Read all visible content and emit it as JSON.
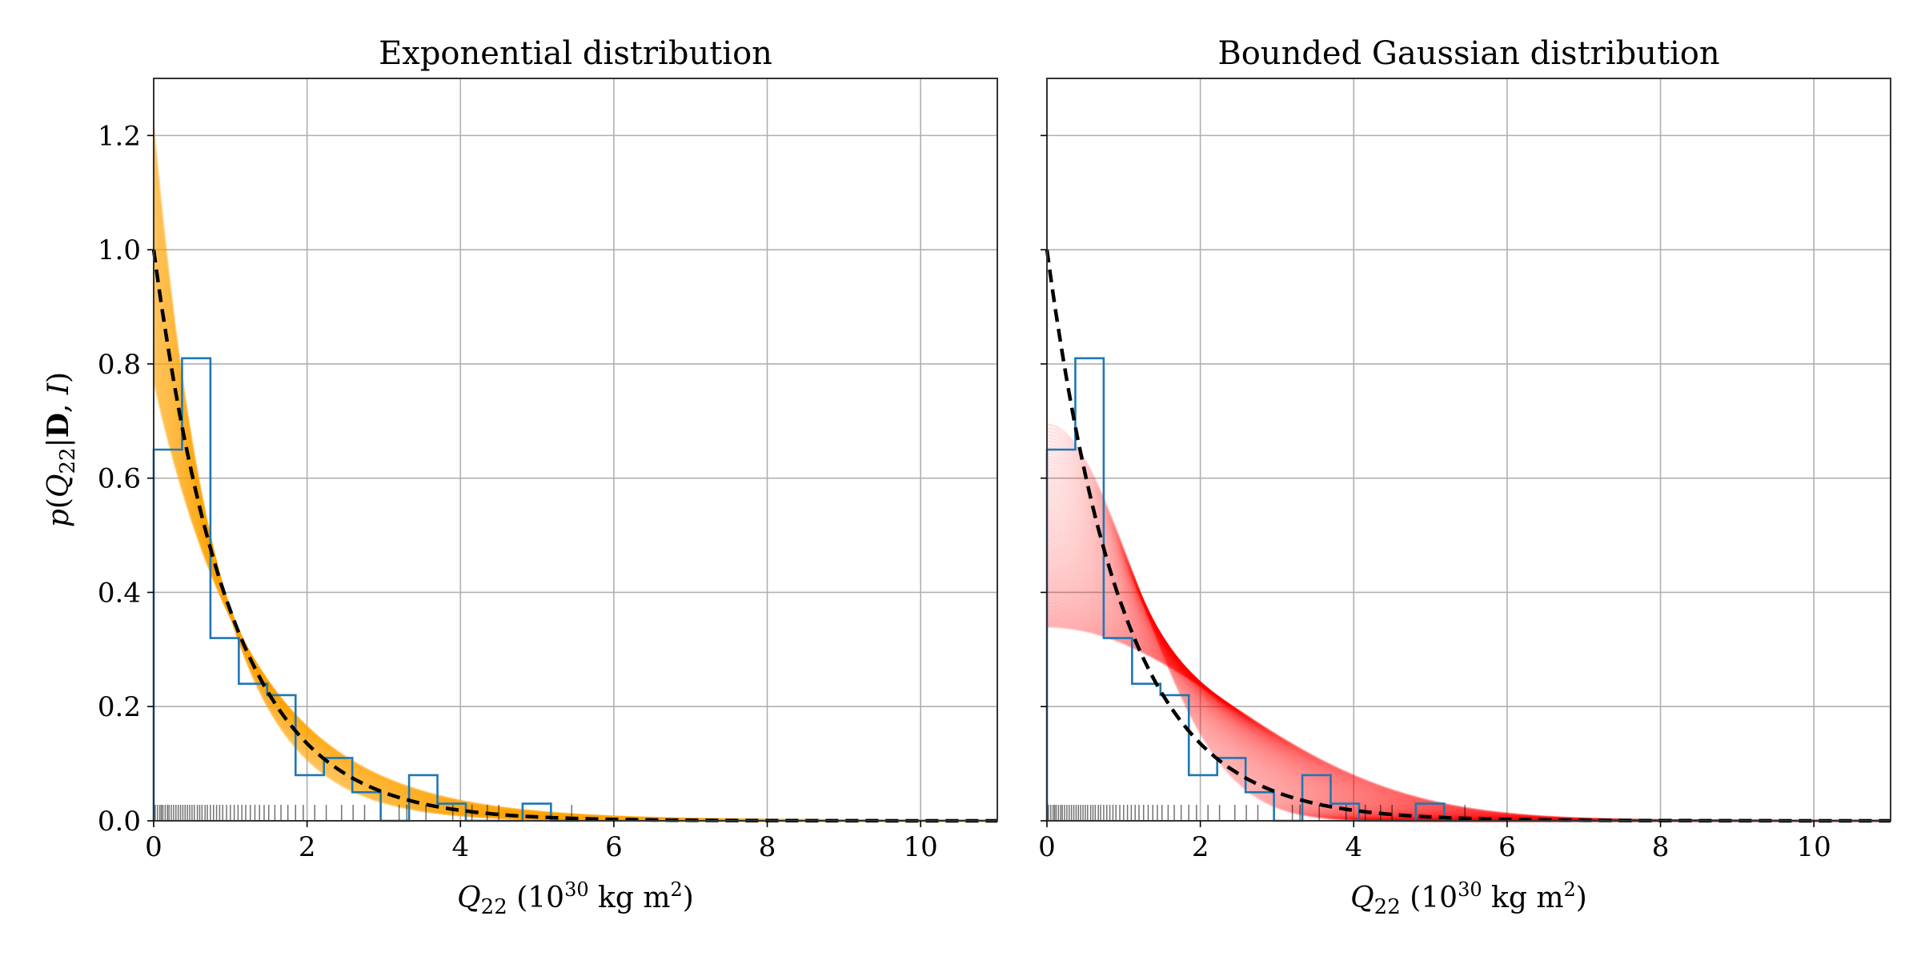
{
  "figure": {
    "left_title": "Exponential distribution",
    "right_title": "Bounded Gaussian distribution",
    "ylabel": {
      "p": "p",
      "open": "(",
      "q": "Q",
      "sub": "22",
      "bar": "|",
      "d": "D",
      "comma": ", ",
      "i": "I",
      "close": ")"
    },
    "xlabel": {
      "q": "Q",
      "sub": "22",
      "pre": " (10",
      "exp": "30",
      "unit": " kg m",
      "exp2": "2",
      "post": ")"
    },
    "colors": {
      "exponential_samples": "#ffa500",
      "gaussian_samples": "#ff0000",
      "histogram": "#1f77b4",
      "true_curve": "#000000",
      "rug": "#000000",
      "grid": "#b0b0b0"
    }
  },
  "chart_data": [
    {
      "type": "line",
      "panel": "left",
      "title": "Exponential distribution",
      "xlabel": "Q22 (10^30 kg m^2)",
      "ylabel": "p(Q22|D, I)",
      "xlim": [
        0,
        11
      ],
      "ylim": [
        0,
        1.3
      ],
      "xticks": [
        "0",
        "2",
        "4",
        "6",
        "8",
        "10"
      ],
      "yticks": [
        "0.0",
        "0.2",
        "0.4",
        "0.6",
        "0.8",
        "1.0",
        "1.2"
      ],
      "grid": true,
      "true_distribution": {
        "kind": "exponential",
        "mean": 1.0
      },
      "posterior_samples": {
        "kind": "exponential",
        "mean_range": [
          0.82,
          1.3
        ],
        "count": 120,
        "color": "#ffa500"
      },
      "histogram": {
        "edges": [
          0,
          0.37,
          0.74,
          1.11,
          1.48,
          1.85,
          2.22,
          2.59,
          2.96,
          3.33,
          3.7,
          4.07,
          4.44,
          4.81,
          5.18,
          5.55
        ],
        "heights": [
          0.65,
          0.81,
          0.32,
          0.24,
          0.22,
          0.08,
          0.11,
          0.05,
          0,
          0.08,
          0.03,
          0,
          0,
          0.03,
          0
        ],
        "color": "#1f77b4"
      },
      "rug_values": [
        0.02,
        0.05,
        0.08,
        0.1,
        0.12,
        0.15,
        0.18,
        0.2,
        0.23,
        0.26,
        0.29,
        0.32,
        0.35,
        0.38,
        0.41,
        0.44,
        0.47,
        0.5,
        0.53,
        0.57,
        0.6,
        0.63,
        0.67,
        0.7,
        0.74,
        0.78,
        0.82,
        0.86,
        0.9,
        0.95,
        1.0,
        1.05,
        1.1,
        1.15,
        1.2,
        1.26,
        1.32,
        1.38,
        1.44,
        1.5,
        1.58,
        1.66,
        1.75,
        1.85,
        1.95,
        2.1,
        2.25,
        2.45,
        2.6,
        2.75,
        3.2,
        3.3,
        3.55,
        3.9,
        4.15,
        4.35,
        4.5,
        5.45
      ]
    },
    {
      "type": "line",
      "panel": "right",
      "title": "Bounded Gaussian distribution",
      "xlabel": "Q22 (10^30 kg m^2)",
      "xlim": [
        0,
        11
      ],
      "ylim": [
        0,
        1.3
      ],
      "xticks": [
        "0",
        "2",
        "4",
        "6",
        "8",
        "10"
      ],
      "grid": true,
      "true_distribution": {
        "kind": "exponential",
        "mean": 1.0
      },
      "posterior_samples": {
        "kind": "half-gaussian",
        "sigma_range": [
          1.15,
          2.35
        ],
        "count": 120,
        "color": "#ff0000"
      },
      "histogram": {
        "edges": [
          0,
          0.37,
          0.74,
          1.11,
          1.48,
          1.85,
          2.22,
          2.59,
          2.96,
          3.33,
          3.7,
          4.07,
          4.44,
          4.81,
          5.18,
          5.55
        ],
        "heights": [
          0.65,
          0.81,
          0.32,
          0.24,
          0.22,
          0.08,
          0.11,
          0.05,
          0,
          0.08,
          0.03,
          0,
          0,
          0.03,
          0
        ],
        "color": "#1f77b4"
      },
      "rug_values": [
        0.02,
        0.05,
        0.08,
        0.1,
        0.12,
        0.15,
        0.18,
        0.2,
        0.23,
        0.26,
        0.29,
        0.32,
        0.35,
        0.38,
        0.41,
        0.44,
        0.47,
        0.5,
        0.53,
        0.57,
        0.6,
        0.63,
        0.67,
        0.7,
        0.74,
        0.78,
        0.82,
        0.86,
        0.9,
        0.95,
        1.0,
        1.05,
        1.1,
        1.15,
        1.2,
        1.26,
        1.32,
        1.38,
        1.44,
        1.5,
        1.58,
        1.66,
        1.75,
        1.85,
        1.95,
        2.1,
        2.25,
        2.45,
        2.6,
        2.75,
        3.2,
        3.3,
        3.55,
        3.9,
        4.15,
        4.35,
        4.5,
        5.45
      ]
    }
  ]
}
